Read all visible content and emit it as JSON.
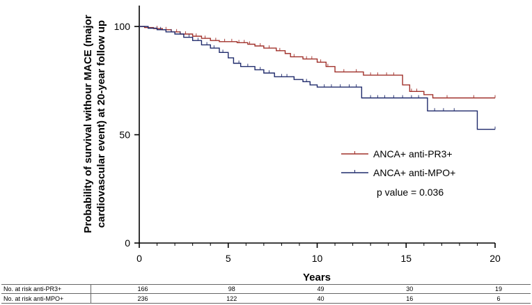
{
  "chart_data": {
    "type": "line",
    "subtype": "kaplan-meier",
    "ylabel_line1": "Probability of survival withour MACE (major",
    "ylabel_line2": "cardiovascular event) at 20-year follow up",
    "xlabel": "Years",
    "xlim": [
      0,
      20
    ],
    "ylim": [
      0,
      110
    ],
    "x_ticks": [
      0,
      5,
      10,
      15,
      20
    ],
    "y_ticks": [
      0,
      50,
      100
    ],
    "legend_position": "center-right",
    "annotation": "p value = 0.036",
    "series": [
      {
        "name": "ANCA+ anti-PR3+",
        "color": "#a0302a",
        "steps": [
          [
            0,
            100
          ],
          [
            0.3,
            99.5
          ],
          [
            0.8,
            99
          ],
          [
            1.3,
            98.5
          ],
          [
            1.8,
            97.5
          ],
          [
            2.3,
            96.5
          ],
          [
            3,
            95.5
          ],
          [
            3.5,
            94.5
          ],
          [
            4,
            93.5
          ],
          [
            4.5,
            93
          ],
          [
            5.5,
            92.5
          ],
          [
            6.1,
            91.8
          ],
          [
            6.5,
            91
          ],
          [
            7,
            90
          ],
          [
            7.7,
            88.8
          ],
          [
            8.2,
            87.5
          ],
          [
            8.5,
            86
          ],
          [
            9.2,
            85
          ],
          [
            10,
            83.5
          ],
          [
            10.5,
            81.5
          ],
          [
            11,
            79
          ],
          [
            12.6,
            77.5
          ],
          [
            14.8,
            73
          ],
          [
            15.2,
            70
          ],
          [
            16,
            68.5
          ],
          [
            16.5,
            67
          ]
        ],
        "censors": [
          1.0,
          1.5,
          2.1,
          2.6,
          3.2,
          3.7,
          4.3,
          4.8,
          5.2,
          5.6,
          5.9,
          6.2,
          6.8,
          7.3,
          7.9,
          8.7,
          9.4,
          9.7,
          10.2,
          10.6,
          11.5,
          12.2,
          13,
          13.4,
          13.9,
          14.3,
          15.3,
          15.6,
          17.3,
          18.8,
          20
        ]
      },
      {
        "name": "ANCA+ anti-MPO+",
        "color": "#1f2a6b",
        "steps": [
          [
            0,
            100
          ],
          [
            0.5,
            99.2
          ],
          [
            1,
            98.5
          ],
          [
            1.5,
            97.5
          ],
          [
            2,
            96.5
          ],
          [
            2.5,
            95
          ],
          [
            3,
            93.5
          ],
          [
            3.5,
            91.5
          ],
          [
            4,
            90
          ],
          [
            4.5,
            88
          ],
          [
            5,
            85.5
          ],
          [
            5.3,
            83
          ],
          [
            5.7,
            81.5
          ],
          [
            6.5,
            80
          ],
          [
            7,
            78.5
          ],
          [
            7.6,
            76.8
          ],
          [
            8.7,
            75.5
          ],
          [
            9.2,
            74.5
          ],
          [
            9.6,
            73
          ],
          [
            10,
            72
          ],
          [
            12.5,
            67
          ],
          [
            16.2,
            61
          ],
          [
            19,
            52.5
          ]
        ],
        "censors": [
          1.2,
          1.8,
          2.3,
          2.8,
          3.3,
          3.8,
          4.2,
          4.7,
          5.6,
          6.1,
          6.8,
          7.3,
          8,
          8.3,
          9.4,
          10.4,
          10.8,
          11.3,
          11.8,
          12.2,
          13,
          13.4,
          13.8,
          14.3,
          14.8,
          15.3,
          15.7,
          16.6,
          17.1,
          17.7,
          20
        ]
      }
    ]
  },
  "risk_table": {
    "rows": [
      {
        "label": "No. at risk anti-PR3+",
        "values": [
          "166",
          "98",
          "49",
          "30",
          "19"
        ]
      },
      {
        "label": "No. at risk anti-MPO+",
        "values": [
          "236",
          "122",
          "40",
          "16",
          "6"
        ]
      }
    ]
  },
  "colors": {
    "axis": "#000000",
    "pr3": "#a0302a",
    "mpo": "#1f2a6b",
    "table_border": "#666666"
  }
}
